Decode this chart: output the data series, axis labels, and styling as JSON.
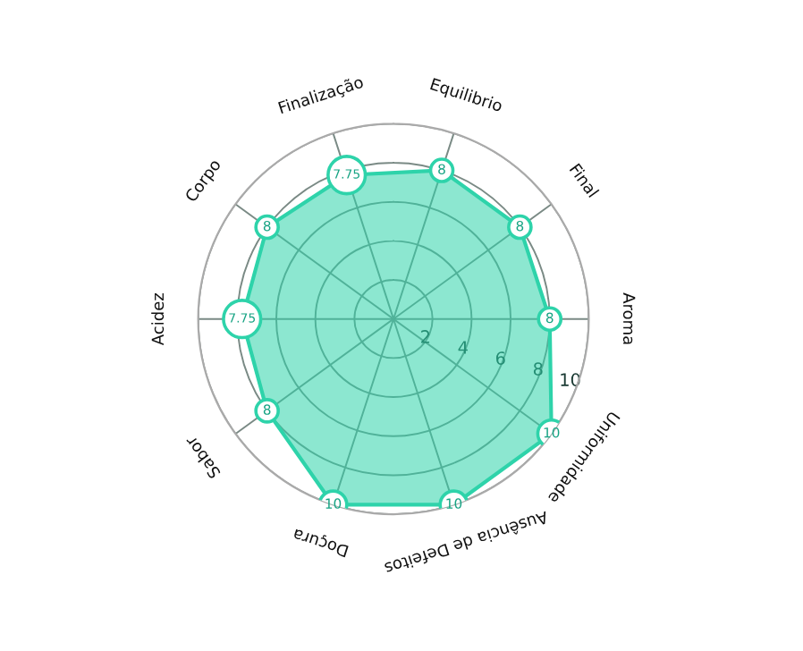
{
  "chart_data": {
    "type": "radar",
    "categories": [
      "Equilibrio",
      "Final",
      "Aroma",
      "Uniformidade",
      "Ausência de Defeitos",
      "Doçura",
      "Sabor",
      "Acidez",
      "Corpo",
      "Finalização"
    ],
    "series": [
      {
        "color": "#2ed3aa",
        "values": [
          8,
          8,
          8,
          10,
          10,
          10,
          8,
          7.75,
          8,
          7.75
        ]
      }
    ],
    "ylim": [
      0,
      10
    ],
    "yticks": [
      2,
      4,
      6,
      8,
      10
    ],
    "grid": true,
    "marker": "circle",
    "data_labels": true
  }
}
